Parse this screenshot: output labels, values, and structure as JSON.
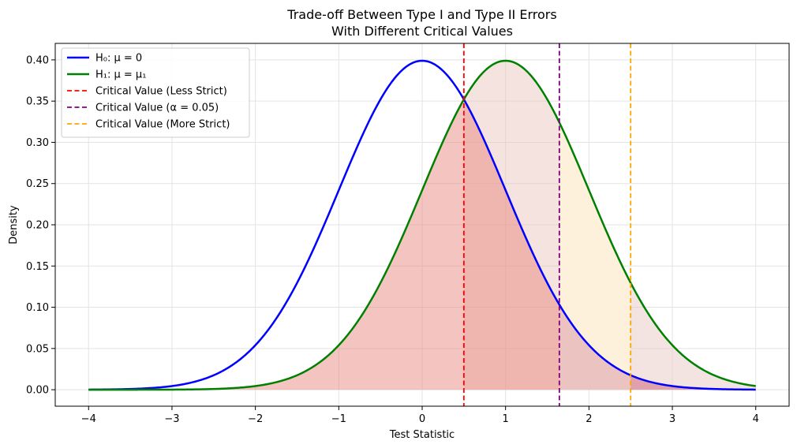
{
  "chart_data": {
    "type": "line",
    "title": [
      "Trade-off Between Type I and Type II Errors",
      "With Different Critical Values"
    ],
    "xlabel": "Test Statistic",
    "ylabel": "Density",
    "xlim": [
      -4.4,
      4.4
    ],
    "ylim": [
      -0.02,
      0.42
    ],
    "x_ticks": [
      -4,
      -3,
      -2,
      -1,
      0,
      1,
      2,
      3,
      4
    ],
    "y_ticks": [
      0.0,
      0.05,
      0.1,
      0.15,
      0.2,
      0.25,
      0.3,
      0.35,
      0.4
    ],
    "x_tick_labels": [
      "−4",
      "−3",
      "−2",
      "−1",
      "0",
      "1",
      "2",
      "3",
      "4"
    ],
    "y_tick_labels": [
      "0.00",
      "0.05",
      "0.10",
      "0.15",
      "0.20",
      "0.25",
      "0.30",
      "0.35",
      "0.40"
    ],
    "grid": true,
    "legend_position": "upper-left",
    "x_range": [
      -4,
      4
    ],
    "series": [
      {
        "name": "H₀: μ = 0",
        "kind": "normal-pdf",
        "mean": 0,
        "sd": 1,
        "color": "#0000ff"
      },
      {
        "name": "H₁: μ = μ₁",
        "kind": "normal-pdf",
        "mean": 1,
        "sd": 1,
        "color": "#008000"
      }
    ],
    "critical_values": [
      {
        "name": "Critical Value (Less Strict)",
        "x": 0.5,
        "color": "#ff0000"
      },
      {
        "name": "Critical Value (α = 0.05)",
        "x": 1.645,
        "color": "#800080"
      },
      {
        "name": "Critical Value (More Strict)",
        "x": 2.5,
        "color": "#ffa500"
      }
    ],
    "shaded_regions": [
      {
        "under": "H₁: μ = μ₁",
        "from": -4,
        "to": 0.5,
        "color": "#e67e73",
        "opacity": 0.45
      },
      {
        "under": "H₁: μ = μ₁",
        "from": 0.5,
        "to": 2.5,
        "color": "#e9c7be",
        "opacity": 0.5
      },
      {
        "under": "H₁: μ = μ₁",
        "from": 2.5,
        "to": 4,
        "color": "#e8c9c3",
        "opacity": 0.5
      },
      {
        "under": "H₀: μ = 0",
        "from": 0.5,
        "to": 4,
        "color": "#e67e73",
        "opacity": 0.45
      },
      {
        "under": "H₁: μ = μ₁",
        "from": 1.645,
        "to": 2.5,
        "color": "#fff3dc",
        "opacity": 0.85
      },
      {
        "under": "H₀: μ = 0",
        "from": 1.645,
        "to": 4,
        "color": "#c97fa0",
        "opacity": 0.35
      }
    ]
  }
}
